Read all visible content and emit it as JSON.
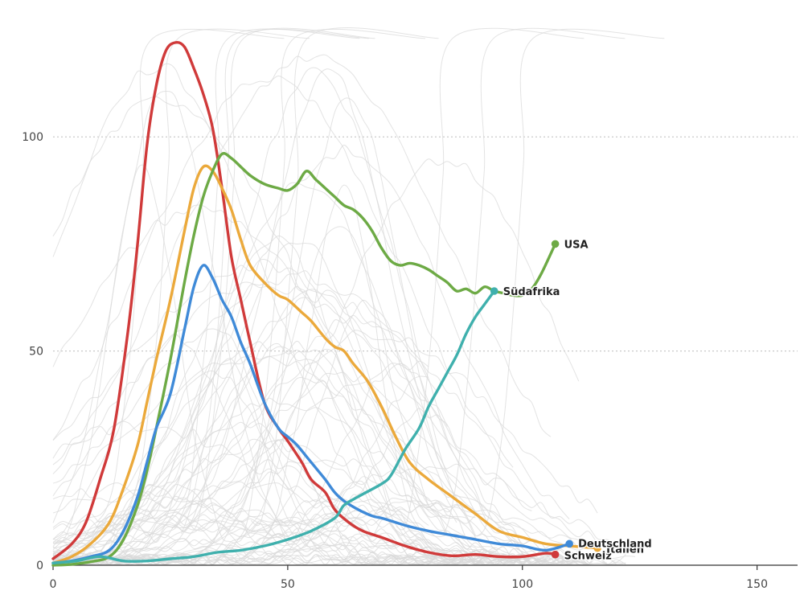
{
  "chart_data": {
    "type": "line",
    "title": "",
    "xlabel": "",
    "ylabel": "",
    "xlim": [
      0,
      160
    ],
    "ylim": [
      0,
      125
    ],
    "x_ticks": [
      0,
      50,
      100,
      150
    ],
    "y_ticks": [
      0,
      50,
      100
    ],
    "grid": true,
    "colors": {
      "Schweiz": "#d03a3a",
      "Italien": "#eba93b",
      "USA": "#6daa45",
      "Deutschland": "#3f8ad8",
      "Südafrika": "#3fb0ad",
      "background": "#d9d9d9"
    },
    "series": [
      {
        "name": "Schweiz",
        "end_label": "Schweiz",
        "x": [
          0,
          4,
          7,
          10,
          13,
          16,
          18,
          20,
          22,
          24,
          26,
          28,
          30,
          32,
          34,
          36,
          38,
          40,
          42,
          45,
          48,
          50,
          53,
          55,
          58,
          60,
          63,
          66,
          70,
          75,
          80,
          85,
          90,
          95,
          100,
          105,
          107
        ],
        "y": [
          1.5,
          5,
          10,
          20,
          32,
          55,
          75,
          98,
          112,
          120,
          122,
          121,
          116,
          110,
          102,
          88,
          72,
          62,
          52,
          38,
          32,
          29,
          24,
          20,
          17,
          13,
          10,
          8,
          6.5,
          4.5,
          3,
          2.2,
          2.5,
          2,
          2,
          2.8,
          2.5
        ]
      },
      {
        "name": "Italien",
        "end_label": "Italien",
        "x": [
          0,
          4,
          8,
          12,
          15,
          18,
          20,
          22,
          25,
          28,
          30,
          32,
          34,
          36,
          38,
          40,
          42,
          45,
          48,
          50,
          53,
          55,
          58,
          60,
          62,
          64,
          67,
          70,
          73,
          76,
          80,
          85,
          90,
          95,
          100,
          105,
          110,
          116
        ],
        "y": [
          0.5,
          2,
          5,
          10,
          18,
          28,
          38,
          48,
          62,
          78,
          88,
          93,
          92,
          88,
          83,
          76,
          70,
          66,
          63,
          62,
          59,
          57,
          53,
          51,
          50,
          47,
          43,
          37,
          30,
          24,
          20,
          16,
          12,
          8,
          6.5,
          5,
          4.5,
          4
        ]
      },
      {
        "name": "USA",
        "end_label": "USA",
        "x": [
          0,
          4,
          8,
          12,
          15,
          18,
          20,
          22,
          25,
          28,
          30,
          32,
          34,
          36,
          38,
          40,
          42,
          45,
          48,
          50,
          52,
          54,
          56,
          58,
          60,
          62,
          64,
          66,
          68,
          70,
          72,
          74,
          76,
          78,
          80,
          82,
          84,
          86,
          88,
          90,
          92,
          94,
          96,
          98,
          100,
          102,
          104,
          107
        ],
        "y": [
          0,
          0.2,
          0.8,
          2,
          6,
          14,
          22,
          32,
          48,
          66,
          77,
          86,
          92,
          96,
          95,
          93,
          91,
          89,
          88,
          87.5,
          89,
          92,
          90,
          88,
          86,
          84,
          83,
          81,
          78,
          74,
          71,
          70,
          70.5,
          70,
          69,
          67.5,
          66,
          64,
          64.5,
          63.5,
          65,
          64,
          63.5,
          63,
          63,
          64.5,
          68,
          75
        ]
      },
      {
        "name": "Deutschland",
        "end_label": "Deutschland",
        "x": [
          0,
          4,
          8,
          12,
          15,
          18,
          20,
          22,
          25,
          28,
          30,
          32,
          34,
          36,
          38,
          40,
          42,
          45,
          48,
          50,
          52,
          55,
          58,
          60,
          62,
          65,
          68,
          70,
          73,
          76,
          80,
          85,
          90,
          95,
          100,
          105,
          110
        ],
        "y": [
          0.5,
          1,
          2,
          3.5,
          8,
          16,
          24,
          32,
          40,
          55,
          65,
          70,
          67,
          62,
          58,
          52,
          47,
          38,
          32,
          30,
          28,
          24,
          20,
          17,
          15,
          13,
          11.5,
          11,
          10,
          9,
          8,
          7,
          6,
          5,
          4.5,
          3.5,
          5
        ]
      },
      {
        "name": "Südafrika",
        "end_label": "Südafrika",
        "x": [
          0,
          5,
          10,
          15,
          20,
          25,
          30,
          35,
          40,
          45,
          50,
          55,
          60,
          62,
          65,
          70,
          72,
          75,
          78,
          80,
          82,
          84,
          86,
          88,
          90,
          92,
          94
        ],
        "y": [
          0.5,
          1,
          2,
          1,
          1,
          1.5,
          2,
          3,
          3.5,
          4.5,
          6,
          8,
          11,
          14,
          16,
          19,
          21,
          27,
          32,
          37,
          41,
          45,
          49,
          54,
          58,
          61,
          64
        ]
      }
    ]
  }
}
